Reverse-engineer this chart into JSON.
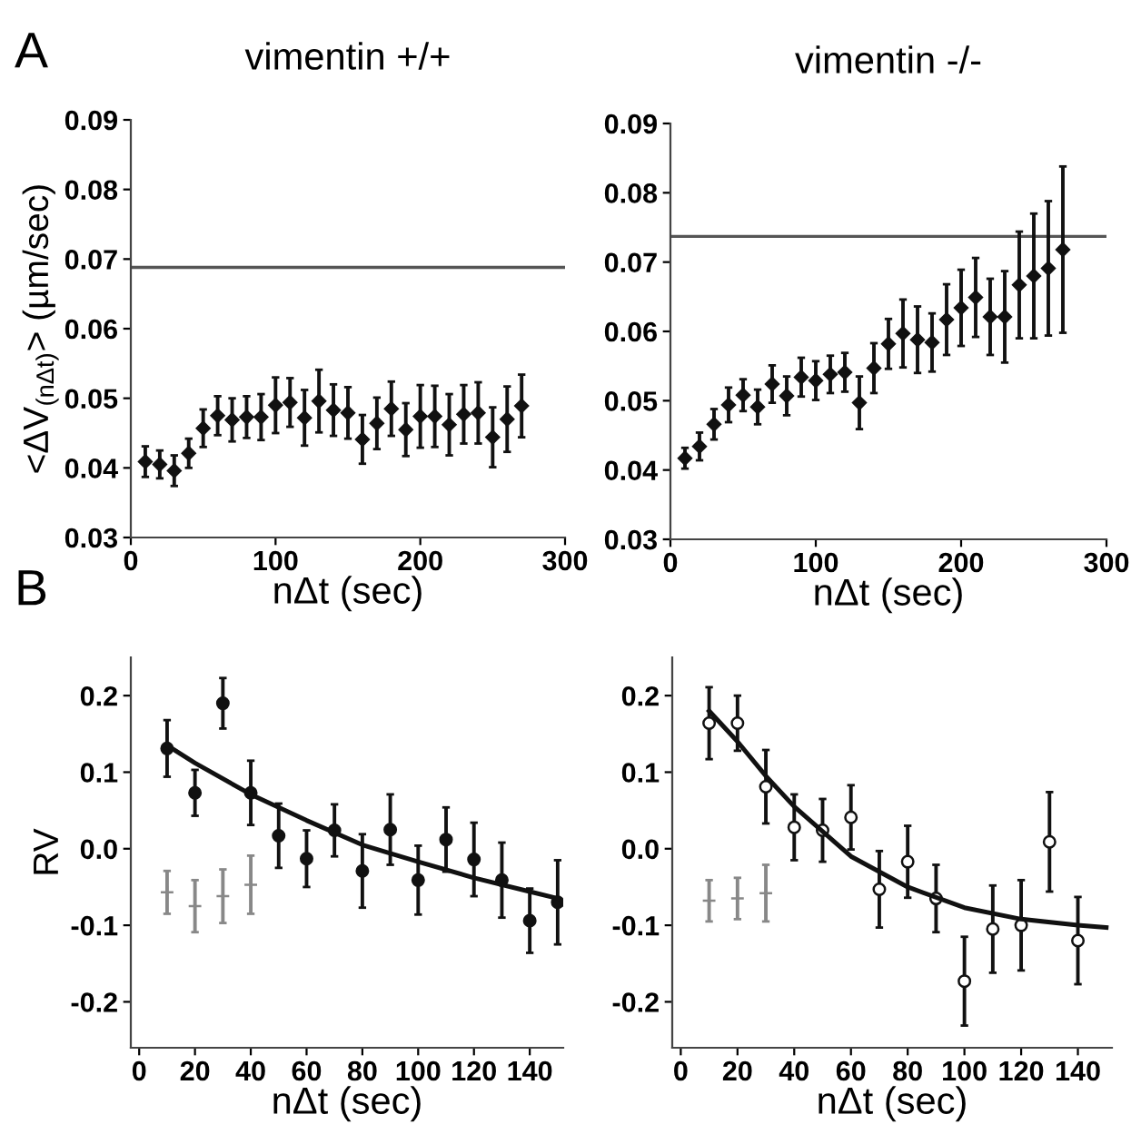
{
  "chart_data": [
    {
      "type": "scatter",
      "title": "vimentin +/+",
      "xlabel": "nΔt (sec)",
      "ylabel": "<ΔV$_{(nΔt)}$> (µm/sec)",
      "annotations": [
        "A"
      ],
      "xlim": [
        0,
        300
      ],
      "xticks": [
        0,
        100,
        200,
        300
      ],
      "ylim": [
        0.03,
        0.09
      ],
      "yticks": [
        0.03,
        0.04,
        0.05,
        0.06,
        0.07,
        0.08,
        0.09
      ],
      "grid": false,
      "legend": false,
      "ref_lines": [
        {
          "axis": "y",
          "value": 0.0688,
          "color": "#555555"
        }
      ],
      "series": [
        {
          "type": "scatter",
          "color": "#111111",
          "marker": "diamond",
          "x": [
            10,
            20,
            30,
            40,
            50,
            60,
            70,
            80,
            90,
            100,
            110,
            120,
            130,
            140,
            150,
            160,
            170,
            180,
            190,
            200,
            210,
            220,
            230,
            240,
            250,
            260,
            270
          ],
          "values": [
            0.0409,
            0.0405,
            0.0396,
            0.0421,
            0.0457,
            0.0475,
            0.0469,
            0.0473,
            0.0473,
            0.049,
            0.0494,
            0.0472,
            0.0496,
            0.0483,
            0.0479,
            0.0441,
            0.0464,
            0.0485,
            0.0455,
            0.0474,
            0.0474,
            0.0462,
            0.0477,
            0.0479,
            0.0444,
            0.047,
            0.0489
          ],
          "errors": [
            0.0022,
            0.002,
            0.0022,
            0.0021,
            0.0027,
            0.0028,
            0.0031,
            0.003,
            0.0033,
            0.004,
            0.0035,
            0.004,
            0.0045,
            0.0037,
            0.0037,
            0.0035,
            0.0037,
            0.0039,
            0.0038,
            0.0045,
            0.0044,
            0.0044,
            0.0042,
            0.0044,
            0.0043,
            0.0047,
            0.0045
          ]
        }
      ]
    },
    {
      "type": "scatter",
      "title": "vimentin -/-",
      "xlabel": "nΔt (sec)",
      "xlim": [
        0,
        300
      ],
      "xticks": [
        0,
        100,
        200,
        300
      ],
      "ylim": [
        0.03,
        0.09
      ],
      "yticks": [
        0.03,
        0.04,
        0.05,
        0.06,
        0.07,
        0.08,
        0.09
      ],
      "grid": false,
      "legend": false,
      "ref_lines": [
        {
          "axis": "y",
          "value": 0.0737,
          "color": "#555555"
        }
      ],
      "series": [
        {
          "type": "scatter",
          "color": "#111111",
          "marker": "diamond",
          "x": [
            10,
            20,
            30,
            40,
            50,
            60,
            70,
            80,
            90,
            100,
            110,
            120,
            130,
            140,
            150,
            160,
            170,
            180,
            190,
            200,
            210,
            220,
            230,
            240,
            250,
            260,
            270
          ],
          "values": [
            0.0417,
            0.0434,
            0.0466,
            0.0494,
            0.0508,
            0.0491,
            0.0524,
            0.0507,
            0.0534,
            0.0529,
            0.0538,
            0.0541,
            0.0497,
            0.0547,
            0.0582,
            0.0597,
            0.0588,
            0.0584,
            0.0617,
            0.0634,
            0.0649,
            0.0621,
            0.0621,
            0.0667,
            0.068,
            0.0691,
            0.0718
          ],
          "errors": [
            0.0015,
            0.002,
            0.0022,
            0.0025,
            0.0023,
            0.0025,
            0.0027,
            0.0028,
            0.0028,
            0.0028,
            0.0027,
            0.0028,
            0.0038,
            0.0036,
            0.0036,
            0.0049,
            0.0048,
            0.0042,
            0.0051,
            0.0055,
            0.0057,
            0.0055,
            0.0066,
            0.0077,
            0.009,
            0.0097,
            0.012
          ]
        }
      ]
    },
    {
      "type": "scatter",
      "ylabel": "RV",
      "xlabel": "nΔt (sec)",
      "annotations": [
        "B"
      ],
      "xlim": [
        -3,
        152
      ],
      "xticks": [
        0,
        20,
        40,
        60,
        80,
        100,
        120,
        140
      ],
      "ylim": [
        -0.26,
        0.25
      ],
      "yticks": [
        -0.2,
        -0.1,
        {
          "value": 0,
          "label": "0.0"
        },
        0.1,
        0.2
      ],
      "grid": false,
      "legend": false,
      "series": [
        {
          "color": "#888888",
          "marker": "cross",
          "x": [
            10,
            20,
            30,
            40
          ],
          "values": [
            -0.057,
            -0.075,
            -0.062,
            -0.047
          ],
          "errors": [
            0.028,
            0.034,
            0.035,
            0.038
          ]
        },
        {
          "color": "#111111",
          "marker": "circle",
          "x": [
            10,
            20,
            30,
            40,
            50,
            60,
            70,
            80,
            90,
            100,
            110,
            120,
            130,
            140,
            150
          ],
          "values": [
            0.131,
            0.073,
            0.19,
            0.073,
            0.017,
            -0.013,
            0.024,
            -0.029,
            0.025,
            -0.041,
            0.012,
            -0.014,
            -0.041,
            -0.094,
            -0.07
          ],
          "errors": [
            0.037,
            0.03,
            0.033,
            0.042,
            0.042,
            0.037,
            0.034,
            0.048,
            0.046,
            0.045,
            0.042,
            0.048,
            0.049,
            0.042,
            0.055
          ]
        },
        {
          "type": "line",
          "color": "#111111",
          "marker": "none",
          "x": [
            10,
            20,
            40,
            60,
            80,
            100,
            120,
            140,
            150
          ],
          "values": [
            0.135,
            0.112,
            0.071,
            0.037,
            0.005,
            -0.017,
            -0.038,
            -0.056,
            -0.065
          ]
        }
      ]
    },
    {
      "type": "scatter",
      "xlabel": "nΔt (sec)",
      "xlim": [
        -3,
        152
      ],
      "xticks": [
        0,
        20,
        40,
        60,
        80,
        100,
        120,
        140
      ],
      "ylim": [
        -0.26,
        0.25
      ],
      "yticks": [
        -0.2,
        -0.1,
        {
          "value": 0,
          "label": "0.0"
        },
        0.1,
        0.2
      ],
      "grid": false,
      "legend": false,
      "series": [
        {
          "color": "#888888",
          "marker": "cross",
          "x": [
            10,
            20,
            30
          ],
          "values": [
            -0.068,
            -0.065,
            -0.058
          ],
          "errors": [
            0.027,
            0.027,
            0.037
          ]
        },
        {
          "color": "#111111",
          "marker": "open circle",
          "x": [
            10,
            20,
            30,
            40,
            50,
            60,
            70,
            80,
            90,
            100,
            110,
            120,
            130,
            140
          ],
          "values": [
            0.164,
            0.164,
            0.081,
            0.028,
            0.024,
            0.041,
            -0.053,
            -0.017,
            -0.065,
            -0.173,
            -0.105,
            -0.1,
            0.009,
            -0.12
          ],
          "errors": [
            0.047,
            0.036,
            0.048,
            0.043,
            0.041,
            0.042,
            0.05,
            0.047,
            0.044,
            0.058,
            0.057,
            0.059,
            0.065,
            0.057
          ]
        },
        {
          "type": "line",
          "color": "#111111",
          "marker": "none",
          "x": [
            10,
            20,
            30,
            40,
            60,
            80,
            100,
            120,
            140,
            150
          ],
          "values": [
            0.18,
            0.14,
            0.095,
            0.055,
            -0.01,
            -0.05,
            -0.077,
            -0.092,
            -0.1,
            -0.103
          ]
        }
      ]
    }
  ]
}
